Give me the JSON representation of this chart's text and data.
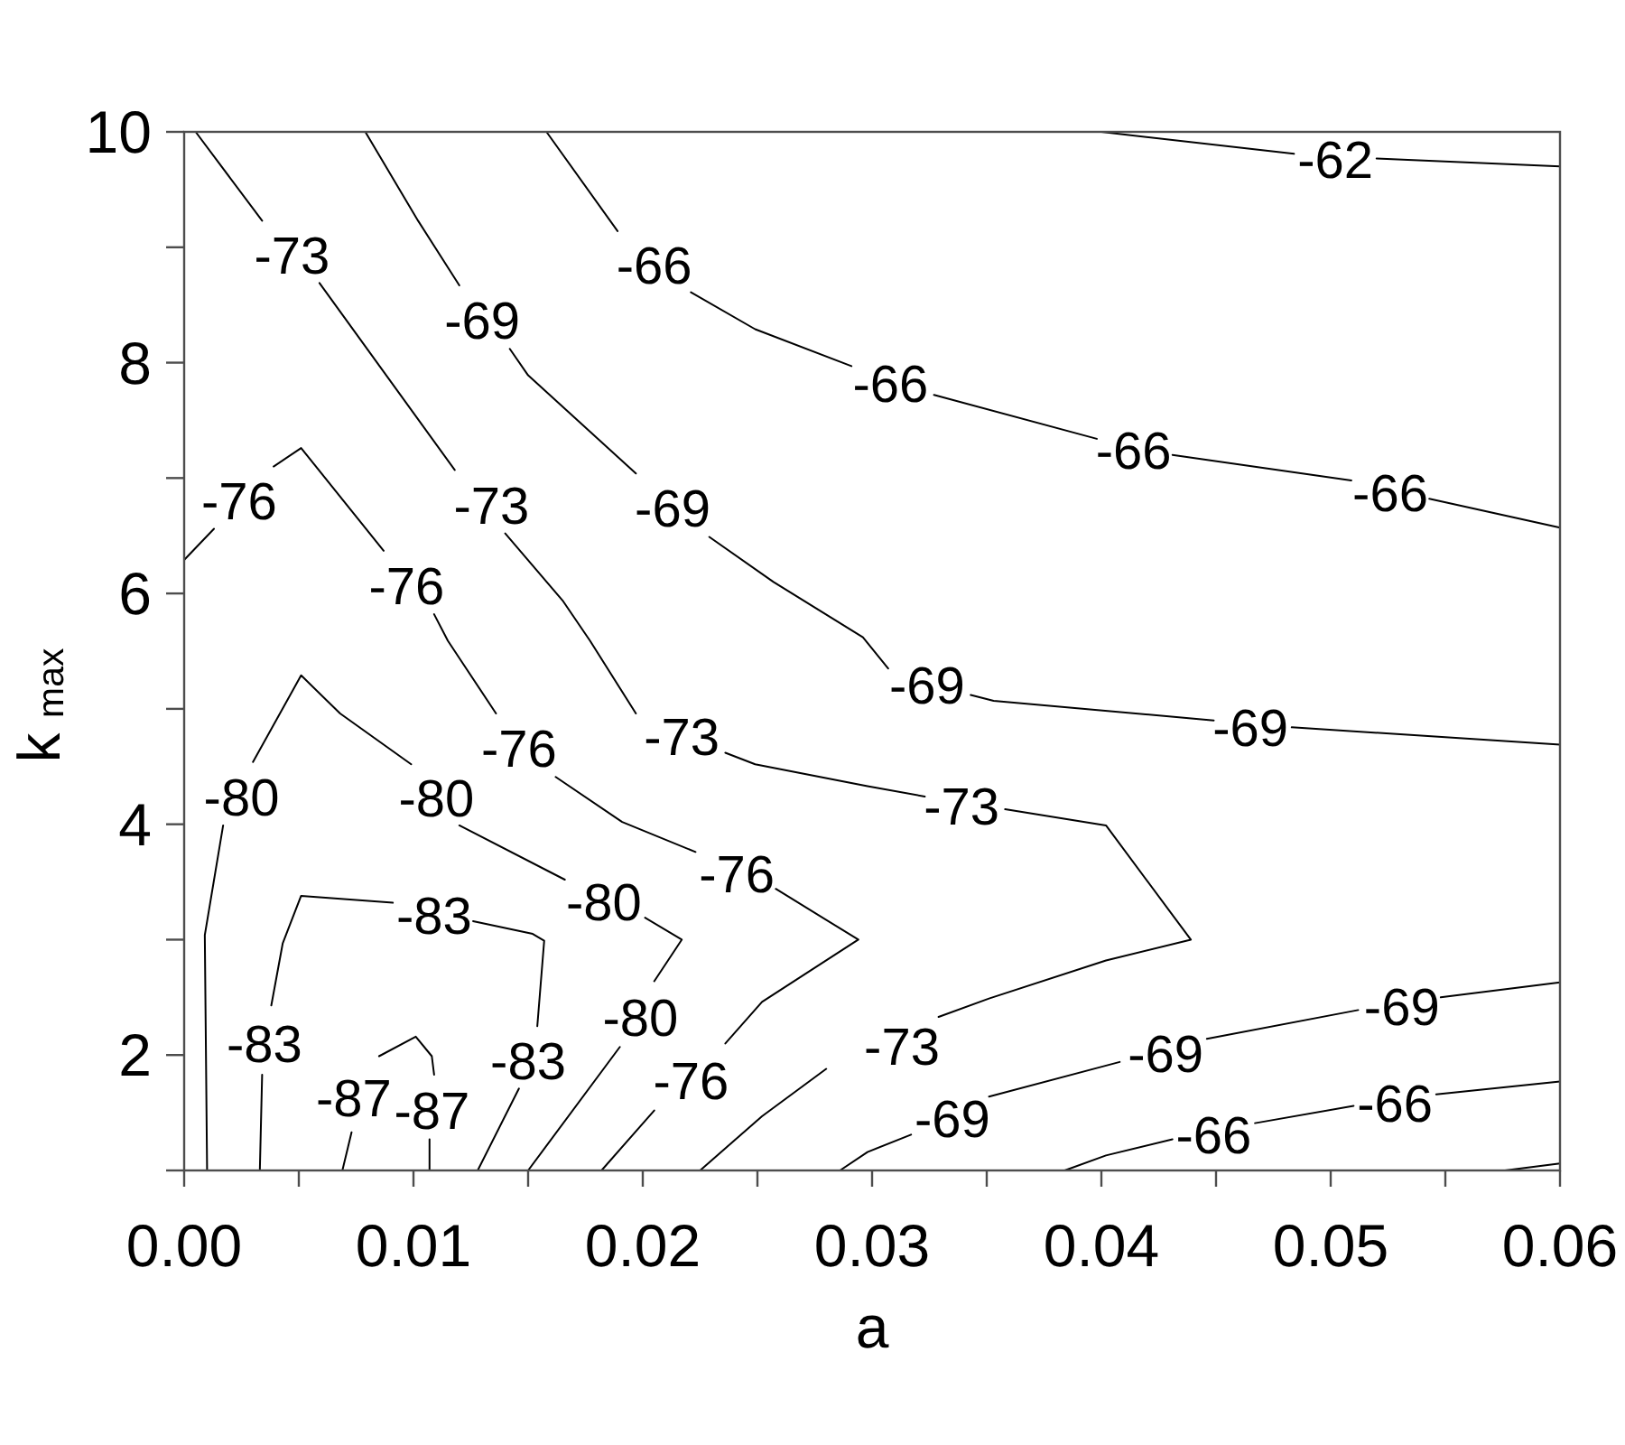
{
  "chart_data": {
    "type": "line",
    "xlabel": "a",
    "ylabel": "k$_{max}$",
    "xlim": [
      0,
      0.06
    ],
    "ylim": [
      1,
      10
    ],
    "xticks": [
      {
        "value": 0,
        "label": "0.00"
      },
      {
        "value": 0.005,
        "label": null
      },
      0.01,
      {
        "value": 0.015,
        "label": null
      },
      0.02,
      {
        "value": 0.025,
        "label": null
      },
      0.03,
      {
        "value": 0.035,
        "label": null
      },
      0.04,
      {
        "value": 0.045,
        "label": null
      },
      0.05,
      {
        "value": 0.055,
        "label": null
      },
      0.06
    ],
    "yticks": [
      {
        "value": 1,
        "label": null
      },
      2,
      {
        "value": 3,
        "label": null
      },
      4,
      {
        "value": 5,
        "label": null
      },
      6,
      {
        "value": 7,
        "label": null
      },
      8,
      {
        "value": 9,
        "label": null
      },
      10
    ],
    "series": [
      {
        "name": "-62",
        "color": "#000000",
        "x": [
          0.04,
          0.0484,
          0.0502,
          0.052,
          0.06
        ],
        "values": [
          10,
          9.81,
          null,
          9.77,
          9.7
        ]
      },
      {
        "name": "-66",
        "color": "#000000",
        "x": [
          0.0158,
          0.0189,
          0.0205,
          0.0221,
          0.0249,
          0.0291,
          0.0308,
          0.0327,
          0.0398,
          0.0414,
          0.0431,
          0.0509,
          0.0526,
          0.0543,
          0.06
        ],
        "values": [
          10,
          9.14,
          null,
          8.61,
          8.29,
          7.97,
          null,
          7.72,
          7.34,
          null,
          7.2,
          6.98,
          null,
          6.82,
          6.57
        ]
      },
      {
        "name": "-69",
        "color": "#000000",
        "x": [
          0.0079,
          0.0102,
          0.012,
          0.013,
          0.0142,
          0.015,
          0.0197,
          0.0213,
          0.0229,
          0.0257,
          0.0296,
          0.0307,
          0.0324,
          0.0343,
          0.0353,
          0.0449,
          0.0465,
          0.0483,
          0.06
        ],
        "values": [
          10,
          9.23,
          8.67,
          null,
          8.12,
          7.89,
          7.04,
          null,
          6.49,
          6.1,
          5.62,
          5.35,
          null,
          5.12,
          5.07,
          4.9,
          null,
          4.84,
          4.69
        ]
      },
      {
        "name": "-73",
        "color": "#000000",
        "x": [
          0.0005,
          0.0034,
          0.0047,
          0.0059,
          0.0118,
          0.0134,
          0.014,
          0.0165,
          0.0177,
          0.0197,
          0.0217,
          0.0236,
          0.0249,
          0.0298,
          0.0323,
          0.0339,
          0.0358,
          0.0402,
          0.0439,
          0.0402,
          0.0351,
          0.0329,
          0.0313,
          0.028,
          0.0252,
          0.0225
        ],
        "values": [
          10,
          9.23,
          null,
          8.69,
          7.07,
          null,
          6.52,
          5.94,
          5.59,
          4.96,
          null,
          4.62,
          4.52,
          4.33,
          4.24,
          null,
          4.13,
          3.99,
          3.0,
          2.82,
          2.49,
          2.33,
          null,
          1.88,
          1.47,
          1.0
        ]
      },
      {
        "name": "-76",
        "color": "#000000",
        "x": [
          0,
          0.0013,
          0.0024,
          0.0039,
          0.0051,
          0.0087,
          0.0097,
          0.0109,
          0.0115,
          0.0136,
          0.0146,
          0.0162,
          0.0191,
          0.0223,
          0.0241,
          0.0258,
          0.0294,
          0.0252,
          0.0236,
          0.0221,
          0.0205,
          0.0182
        ],
        "values": [
          6.29,
          6.56,
          null,
          7.1,
          7.26,
          6.37,
          null,
          5.82,
          5.59,
          4.96,
          null,
          4.41,
          4.02,
          3.76,
          null,
          3.44,
          3.0,
          2.46,
          2.1,
          null,
          1.52,
          1.0
        ]
      },
      {
        "name": "-80",
        "color": "#000000",
        "x": [
          0.001,
          0.0009,
          0.0017,
          0.0025,
          0.003,
          0.0051,
          0.0068,
          0.0099,
          0.011,
          0.012,
          0.0166,
          0.0183,
          0.0201,
          0.0217,
          0.0205,
          0.0199,
          0.019,
          0.015
        ],
        "values": [
          1.0,
          3.04,
          3.99,
          null,
          4.54,
          5.29,
          4.96,
          4.52,
          null,
          3.99,
          3.52,
          null,
          3.19,
          3.0,
          2.64,
          null,
          2.07,
          1.0
        ]
      },
      {
        "name": "-83",
        "color": "#000000",
        "x": [
          0.0033,
          0.0034,
          0.0035,
          0.0038,
          0.0043,
          0.0051,
          0.0091,
          0.0109,
          0.0126,
          0.0152,
          0.0157,
          0.0154,
          0.015,
          0.0146,
          0.0128
        ],
        "values": [
          1.0,
          1.83,
          null,
          2.43,
          2.97,
          3.38,
          3.32,
          null,
          3.16,
          3.05,
          2.99,
          2.25,
          null,
          1.71,
          1.0
        ]
      },
      {
        "name": "-87",
        "color": "#000000",
        "x": [
          0.0069,
          0.0073,
          0.0074,
          0.0085,
          0.0101,
          0.0108,
          0.0109,
          0.0108,
          0.0107,
          0.0107
        ],
        "values": [
          1.0,
          1.33,
          null,
          1.99,
          2.16,
          1.99,
          1.83,
          null,
          1.27,
          1.0
        ]
      },
      {
        "name": "-69",
        "color": "#000000",
        "x": [
          0.0286,
          0.0298,
          0.0317,
          0.0335,
          0.0351,
          0.0408,
          0.0428,
          0.0446,
          0.0512,
          0.0531,
          0.0548,
          0.06
        ],
        "values": [
          1.0,
          1.16,
          1.31,
          null,
          1.64,
          1.94,
          null,
          2.14,
          2.39,
          null,
          2.5,
          2.63
        ]
      },
      {
        "name": "-66",
        "color": "#000000",
        "x": [
          0.0384,
          0.0402,
          0.0431,
          0.0449,
          0.0467,
          0.051,
          0.0528,
          0.0546,
          0.06
        ],
        "values": [
          1.0,
          1.13,
          1.27,
          null,
          1.41,
          1.56,
          null,
          1.66,
          1.77
        ]
      },
      {
        "color": "#000000",
        "x": [
          0.0576,
          0.06
        ],
        "values": [
          1.0,
          1.06
        ]
      }
    ]
  }
}
